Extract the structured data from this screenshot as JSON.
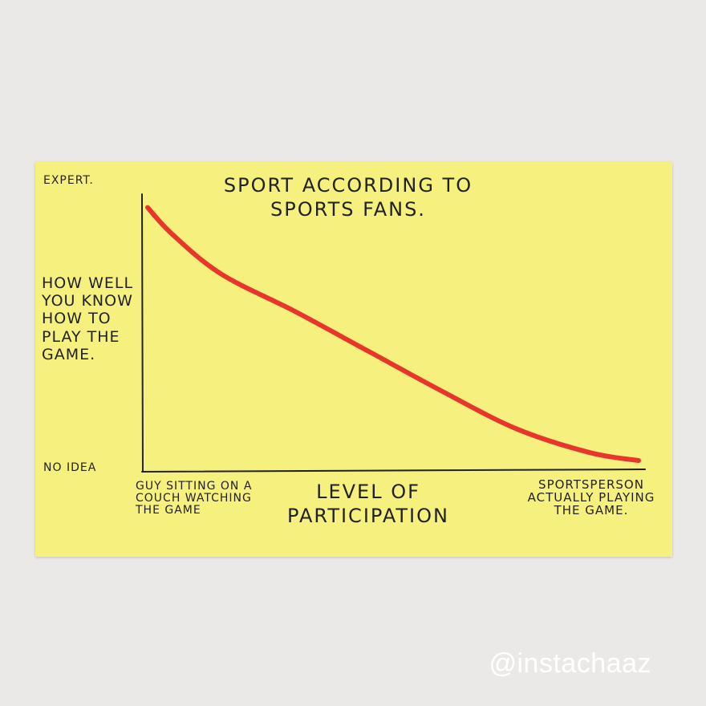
{
  "chart_data": {
    "type": "line",
    "title": "SPORT ACCORDING TO SPORTS FANS.",
    "ylabel": "HOW WELL YOU KNOW HOW TO PLAY THE GAME.",
    "xlabel": "LEVEL OF PARTICIPATION",
    "y_tick_labels": [
      "EXPERT.",
      "NO IDEA"
    ],
    "x_tick_labels": [
      "GUY SITTING ON A COUCH WATCHING THE GAME",
      "SPORTSPERSON ACTUALLY PLAYING THE GAME."
    ],
    "xlim": [
      0,
      1
    ],
    "ylim": [
      0,
      1
    ],
    "series": [
      {
        "color": "#e8362c",
        "x": [
          0.0,
          0.05,
          0.15,
          0.3,
          0.45,
          0.6,
          0.75,
          0.9,
          1.0
        ],
        "y": [
          0.98,
          0.88,
          0.73,
          0.59,
          0.44,
          0.29,
          0.15,
          0.06,
          0.03
        ]
      }
    ]
  },
  "watermark": "@instachaaz",
  "colors": {
    "card": "#f6f07f",
    "background": "#ebe9e8",
    "ink": "#222222",
    "line": "#e8362c"
  }
}
